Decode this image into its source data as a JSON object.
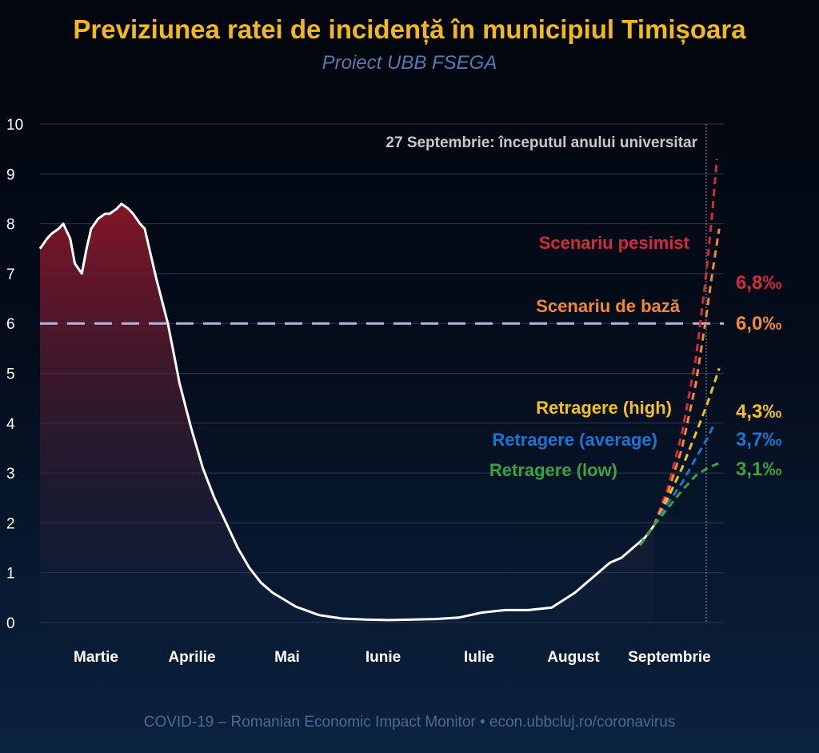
{
  "title": "Previziunea ratei de incidență în municipiul Timișoara",
  "subtitle": "Proiect UBB FSEGA",
  "footer": "COVID-19 – Romanian Economic Impact Monitor • econ.ubbcluj.ro/coronavirus",
  "colors": {
    "title": "#f5b71e",
    "subtitle": "#5a78b0",
    "grid": "#2b3a52",
    "axis_text": "#ffffff",
    "curve": "#ffffff",
    "fill_top": "#8a1527",
    "threshold": "#b9b4dd",
    "annotation": "#c8c8c8",
    "footer": "#4f6a90"
  },
  "chart_data": {
    "type": "line",
    "ylim": [
      0,
      10
    ],
    "yticks": [
      0,
      1,
      2,
      3,
      4,
      5,
      6,
      7,
      8,
      9,
      10
    ],
    "month_labels": [
      "Martie",
      "Aprilie",
      "Mai",
      "Iunie",
      "Iulie",
      "August",
      "Septembrie"
    ],
    "threshold": 6.0,
    "vertical_marker_label": "27 Septembrie: începutul anului universitar",
    "observed": {
      "x": [
        0,
        3,
        5,
        8,
        10,
        13,
        15,
        18,
        20,
        22,
        25,
        28,
        30,
        33,
        35,
        38,
        40,
        43,
        45,
        48,
        50,
        55,
        60,
        65,
        70,
        75,
        80,
        85,
        90,
        95,
        100,
        110,
        120,
        130,
        140,
        150,
        160,
        170,
        180,
        190,
        200,
        210,
        220,
        230,
        240,
        245,
        250,
        255,
        260,
        264
      ],
      "y": [
        7.5,
        7.7,
        7.8,
        7.9,
        8.0,
        7.7,
        7.2,
        7.0,
        7.5,
        7.9,
        8.1,
        8.2,
        8.2,
        8.3,
        8.4,
        8.3,
        8.2,
        8.0,
        7.9,
        7.3,
        6.9,
        6.0,
        4.8,
        3.9,
        3.1,
        2.5,
        2.0,
        1.5,
        1.1,
        0.8,
        0.6,
        0.32,
        0.15,
        0.08,
        0.06,
        0.05,
        0.06,
        0.07,
        0.1,
        0.2,
        0.25,
        0.25,
        0.3,
        0.6,
        1.0,
        1.2,
        1.3,
        1.5,
        1.7,
        1.95
      ]
    },
    "scenarios": [
      {
        "name": "Scenariu pesimist",
        "color": "#d42b3c",
        "end_label": "6,8‰",
        "x": [
          258,
          264,
          270,
          276,
          282,
          286,
          289,
          291
        ],
        "y": [
          1.55,
          1.95,
          2.7,
          3.8,
          5.3,
          6.8,
          8.2,
          9.3
        ]
      },
      {
        "name": "Scenariu de bază",
        "color": "#ef8a3a",
        "end_label": "6,0‰",
        "x": [
          258,
          264,
          270,
          276,
          282,
          286,
          289,
          292
        ],
        "y": [
          1.55,
          1.95,
          2.6,
          3.5,
          4.8,
          6.0,
          7.0,
          7.9
        ]
      },
      {
        "name": "Retragere (high)",
        "color": "#f2c020",
        "end_label": "4,3‰",
        "x": [
          258,
          264,
          270,
          276,
          282,
          287,
          292
        ],
        "y": [
          1.55,
          1.95,
          2.5,
          3.1,
          3.8,
          4.4,
          5.1
        ]
      },
      {
        "name": "Retragere (average)",
        "color": "#1e73d4",
        "end_label": "3,7‰",
        "x": [
          258,
          264,
          270,
          276,
          282,
          287,
          290
        ],
        "y": [
          1.55,
          1.95,
          2.4,
          2.8,
          3.3,
          3.7,
          4.0
        ]
      },
      {
        "name": "Retragere (low)",
        "color": "#3ea040",
        "end_label": "3,1‰",
        "x": [
          258,
          264,
          270,
          276,
          282,
          287,
          292
        ],
        "y": [
          1.55,
          1.95,
          2.3,
          2.65,
          2.95,
          3.1,
          3.2
        ]
      }
    ]
  }
}
